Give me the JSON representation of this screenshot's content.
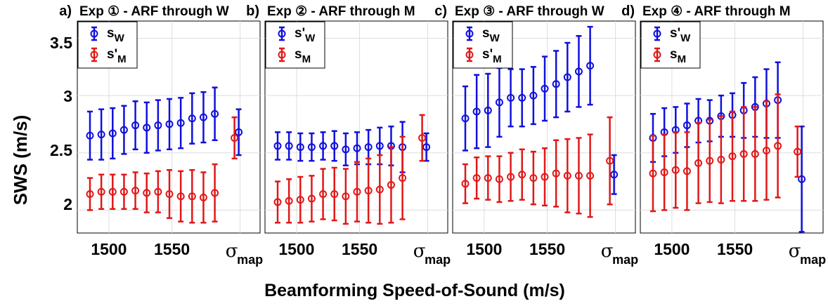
{
  "figure": {
    "ylabel": "SWS (m/s)",
    "xlabel": "Beamforming Speed-of-Sound (m/s)",
    "yticks": [
      "3.5",
      "3",
      "2.5",
      "2"
    ],
    "xticks": [
      "1500",
      "1550"
    ],
    "sigma_label": "σ",
    "sigma_sub": "map",
    "colors": {
      "blue": "#1010dd",
      "red": "#e01818",
      "grid": "#dddddd"
    }
  },
  "chart_data": [
    {
      "type": "scatter",
      "panel": "a)",
      "title": "Exp ① - ARF through W",
      "ylim": [
        1.8,
        3.65
      ],
      "legend": [
        {
          "base": "s",
          "prime": "",
          "sub": "W",
          "color": "blue"
        },
        {
          "base": "s",
          "prime": "'",
          "sub": "M",
          "color": "red"
        }
      ],
      "series": [
        {
          "color": "blue",
          "x": [
            1485,
            1494,
            1503,
            1512,
            1521,
            1530,
            1539,
            1548,
            1557,
            1566,
            1575,
            1584
          ],
          "y": [
            2.65,
            2.66,
            2.67,
            2.7,
            2.74,
            2.72,
            2.74,
            2.75,
            2.76,
            2.8,
            2.81,
            2.84
          ],
          "err": [
            0.21,
            0.22,
            0.22,
            0.21,
            0.21,
            0.22,
            0.22,
            0.22,
            0.22,
            0.22,
            0.22,
            0.23
          ],
          "sigma": {
            "y": 2.68,
            "err": 0.2
          }
        },
        {
          "color": "red",
          "x": [
            1485,
            1494,
            1503,
            1512,
            1521,
            1530,
            1539,
            1548,
            1557,
            1566,
            1575,
            1584
          ],
          "y": [
            2.14,
            2.16,
            2.16,
            2.16,
            2.17,
            2.15,
            2.16,
            2.14,
            2.12,
            2.12,
            2.11,
            2.15
          ],
          "err": [
            0.14,
            0.15,
            0.15,
            0.15,
            0.16,
            0.17,
            0.18,
            0.21,
            0.22,
            0.23,
            0.22,
            0.25
          ],
          "sigma": {
            "y": 2.63,
            "err": 0.18
          }
        }
      ]
    },
    {
      "type": "scatter",
      "panel": "b)",
      "title": "Exp ② - ARF through M",
      "ylim": [
        1.8,
        3.65
      ],
      "legend": [
        {
          "base": "s",
          "prime": "'",
          "sub": "W",
          "color": "blue"
        },
        {
          "base": "s",
          "prime": "",
          "sub": "M",
          "color": "red"
        }
      ],
      "series": [
        {
          "color": "blue",
          "x": [
            1485,
            1494,
            1503,
            1512,
            1521,
            1530,
            1539,
            1548,
            1557,
            1566,
            1575,
            1584
          ],
          "y": [
            2.56,
            2.56,
            2.55,
            2.55,
            2.56,
            2.56,
            2.53,
            2.54,
            2.55,
            2.56,
            2.56,
            2.55
          ],
          "err": [
            0.12,
            0.12,
            0.12,
            0.12,
            0.12,
            0.13,
            0.14,
            0.14,
            0.15,
            0.16,
            0.17,
            0.22
          ],
          "sigma": {
            "y": 2.55,
            "err": 0.12
          }
        },
        {
          "color": "red",
          "x": [
            1485,
            1494,
            1503,
            1512,
            1521,
            1530,
            1539,
            1548,
            1557,
            1566,
            1575,
            1584
          ],
          "y": [
            2.07,
            2.08,
            2.09,
            2.1,
            2.14,
            2.14,
            2.12,
            2.16,
            2.17,
            2.18,
            2.22,
            2.28
          ],
          "err": [
            0.18,
            0.19,
            0.2,
            0.2,
            0.22,
            0.23,
            0.24,
            0.26,
            0.28,
            0.3,
            0.33,
            0.36
          ],
          "sigma": {
            "y": 2.63,
            "err": 0.2
          }
        }
      ]
    },
    {
      "type": "scatter",
      "panel": "c)",
      "title": "Exp ③ - ARF through W",
      "ylim": [
        1.8,
        3.65
      ],
      "legend": [
        {
          "base": "s",
          "prime": "",
          "sub": "W",
          "color": "blue"
        },
        {
          "base": "s",
          "prime": "'",
          "sub": "M",
          "color": "red"
        }
      ],
      "series": [
        {
          "color": "blue",
          "x": [
            1485,
            1494,
            1503,
            1512,
            1521,
            1530,
            1539,
            1548,
            1557,
            1566,
            1575,
            1584
          ],
          "y": [
            2.8,
            2.86,
            2.87,
            2.94,
            2.98,
            2.98,
            3.0,
            3.06,
            3.1,
            3.16,
            3.21,
            3.26
          ],
          "err": [
            0.28,
            0.32,
            0.32,
            0.3,
            0.25,
            0.25,
            0.25,
            0.28,
            0.29,
            0.3,
            0.31,
            0.34
          ],
          "sigma": {
            "y": 2.31,
            "err": 0.17
          }
        },
        {
          "color": "red",
          "x": [
            1485,
            1494,
            1503,
            1512,
            1521,
            1530,
            1539,
            1548,
            1557,
            1566,
            1575,
            1584
          ],
          "y": [
            2.23,
            2.28,
            2.28,
            2.27,
            2.29,
            2.31,
            2.28,
            2.29,
            2.32,
            2.3,
            2.3,
            2.3
          ],
          "err": [
            0.17,
            0.18,
            0.19,
            0.2,
            0.21,
            0.22,
            0.23,
            0.25,
            0.29,
            0.32,
            0.33,
            0.36
          ],
          "sigma": {
            "y": 2.43,
            "err": 0.38
          }
        }
      ]
    },
    {
      "type": "scatter",
      "panel": "d)",
      "title": "Exp ④ - ARF through M",
      "ylim": [
        1.8,
        3.65
      ],
      "legend": [
        {
          "base": "s",
          "prime": "'",
          "sub": "W",
          "color": "blue"
        },
        {
          "base": "s",
          "prime": "",
          "sub": "M",
          "color": "red"
        }
      ],
      "series": [
        {
          "color": "blue",
          "x": [
            1485,
            1494,
            1503,
            1512,
            1521,
            1530,
            1539,
            1548,
            1557,
            1566,
            1575,
            1584
          ],
          "y": [
            2.63,
            2.68,
            2.7,
            2.74,
            2.78,
            2.78,
            2.82,
            2.83,
            2.87,
            2.9,
            2.93,
            2.96
          ],
          "err": [
            0.21,
            0.21,
            0.2,
            0.19,
            0.19,
            0.18,
            0.18,
            0.19,
            0.24,
            0.26,
            0.3,
            0.33
          ],
          "sigma": {
            "y": 2.27,
            "err": 0.46
          }
        },
        {
          "color": "red",
          "x": [
            1485,
            1494,
            1503,
            1512,
            1521,
            1530,
            1539,
            1548,
            1557,
            1566,
            1575,
            1584
          ],
          "y": [
            2.32,
            2.33,
            2.35,
            2.34,
            2.41,
            2.43,
            2.44,
            2.47,
            2.49,
            2.49,
            2.52,
            2.56
          ],
          "err": [
            0.33,
            0.33,
            0.33,
            0.34,
            0.35,
            0.36,
            0.38,
            0.39,
            0.41,
            0.41,
            0.43,
            0.45
          ],
          "sigma": {
            "y": 2.51,
            "err": 0.22
          }
        }
      ]
    }
  ]
}
